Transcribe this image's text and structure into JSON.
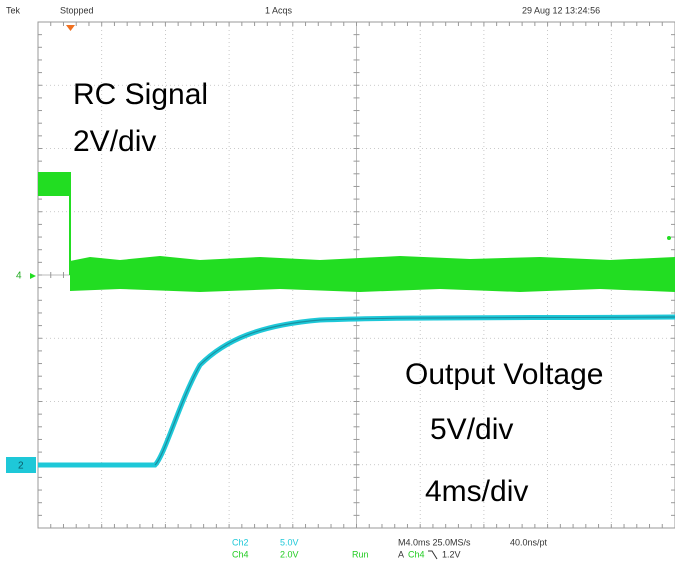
{
  "header": {
    "brand": "Tek",
    "status": "Stopped",
    "acquisitions": "1 Acqs",
    "timestamp": "29 Aug 12 13:24:56"
  },
  "markers": {
    "ch4": "4",
    "ch2": "2"
  },
  "annotations": {
    "rc_signal": "RC Signal",
    "rc_scale": "2V/div",
    "output": "Output Voltage",
    "output_scale": "5V/div",
    "time_scale": "4ms/div"
  },
  "footer": {
    "ch2_name": "Ch2",
    "ch2_scale": "5.0V",
    "ch4_name": "Ch4",
    "ch4_scale": "2.0V",
    "timebase": "M4.0ms 25.0MS/s",
    "resolution": "40.0ns/pt",
    "run": "Run",
    "trigger_source_prefix": "A",
    "trigger_source": "Ch4",
    "trigger_level": "1.2V"
  }
}
